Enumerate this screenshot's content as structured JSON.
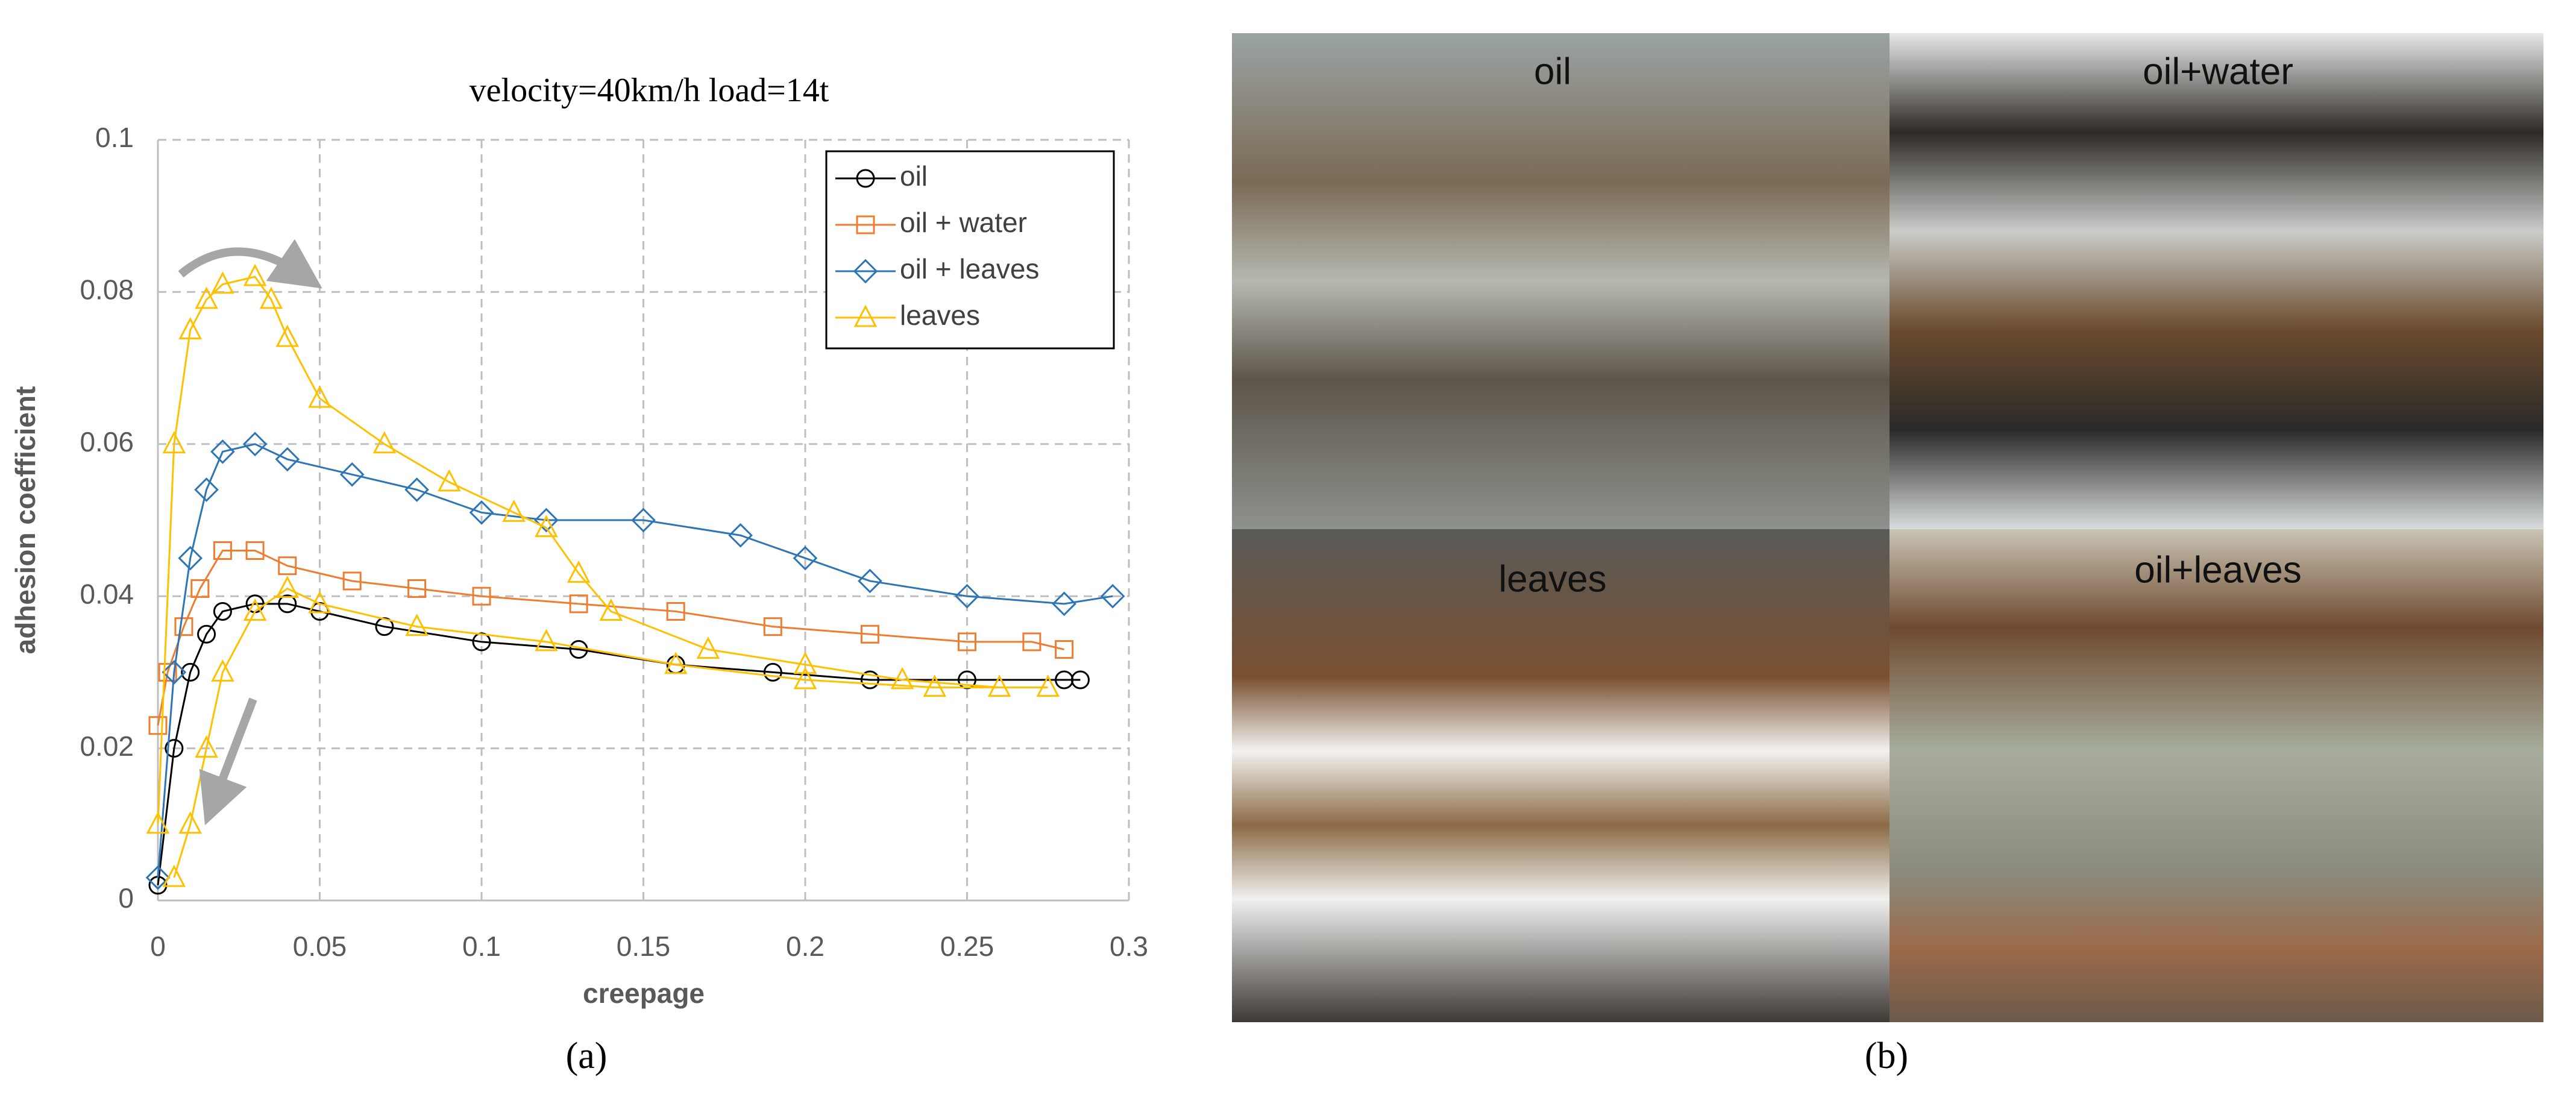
{
  "chart_data": {
    "type": "line",
    "title": "velocity=40km/h  load=14t",
    "x_label": "creepage",
    "y_label": "adhesion coefficient",
    "xlim": [
      0,
      0.3
    ],
    "xticks": [
      0,
      0.05,
      0.1,
      0.15,
      0.2,
      0.25,
      0.3
    ],
    "ylim": [
      0,
      0.1
    ],
    "yticks": [
      0,
      0.02,
      0.04,
      0.06,
      0.08,
      0.1
    ],
    "grid": true,
    "legend": "upper right",
    "series": [
      {
        "name": "oil",
        "color": "#000000",
        "marker": "circle",
        "x": [
          0,
          0.005,
          0.01,
          0.015,
          0.02,
          0.03,
          0.04,
          0.05,
          0.07,
          0.1,
          0.13,
          0.16,
          0.19,
          0.22,
          0.25,
          0.28,
          0.285
        ],
        "values": [
          0.002,
          0.02,
          0.03,
          0.035,
          0.038,
          0.039,
          0.039,
          0.038,
          0.036,
          0.034,
          0.033,
          0.031,
          0.03,
          0.029,
          0.029,
          0.029,
          0.029
        ]
      },
      {
        "name": "oil + water",
        "color": "#ed7d31",
        "marker": "square",
        "x": [
          0,
          0.003,
          0.008,
          0.013,
          0.02,
          0.03,
          0.04,
          0.06,
          0.08,
          0.1,
          0.13,
          0.16,
          0.19,
          0.22,
          0.25,
          0.27,
          0.28
        ],
        "values": [
          0.023,
          0.03,
          0.036,
          0.041,
          0.046,
          0.046,
          0.044,
          0.042,
          0.041,
          0.04,
          0.039,
          0.038,
          0.036,
          0.035,
          0.034,
          0.034,
          0.033
        ]
      },
      {
        "name": "oil + leaves",
        "color": "#2e75b6",
        "marker": "diamond",
        "x": [
          0,
          0.005,
          0.01,
          0.015,
          0.02,
          0.03,
          0.04,
          0.06,
          0.08,
          0.1,
          0.12,
          0.15,
          0.18,
          0.2,
          0.22,
          0.25,
          0.28,
          0.295
        ],
        "values": [
          0.003,
          0.03,
          0.045,
          0.054,
          0.059,
          0.06,
          0.058,
          0.056,
          0.054,
          0.051,
          0.05,
          0.05,
          0.048,
          0.045,
          0.042,
          0.04,
          0.039,
          0.04
        ]
      },
      {
        "name": " leaves",
        "color": "#ffc000",
        "marker": "triangle",
        "x": [
          0,
          0.005,
          0.01,
          0.015,
          0.02,
          0.03,
          0.035,
          0.04,
          0.05,
          0.07,
          0.09,
          0.11,
          0.12,
          0.13,
          0.14,
          0.17,
          0.2,
          0.23,
          0.26,
          0.275,
          0.24,
          0.2,
          0.16,
          0.12,
          0.08,
          0.05,
          0.04,
          0.03,
          0.02,
          0.015,
          0.01,
          0.005
        ],
        "values": [
          0.01,
          0.06,
          0.075,
          0.079,
          0.081,
          0.082,
          0.079,
          0.074,
          0.066,
          0.06,
          0.055,
          0.051,
          0.049,
          0.043,
          0.038,
          0.033,
          0.031,
          0.029,
          0.028,
          0.028,
          0.028,
          0.029,
          0.031,
          0.034,
          0.036,
          0.039,
          0.041,
          0.038,
          0.03,
          0.02,
          0.01,
          0.003
        ]
      }
    ]
  },
  "figure": {
    "captions": [
      "(a)",
      "(b)"
    ],
    "photo_labels": [
      "oil",
      "oil+water",
      "leaves",
      "oil+leaves"
    ]
  }
}
